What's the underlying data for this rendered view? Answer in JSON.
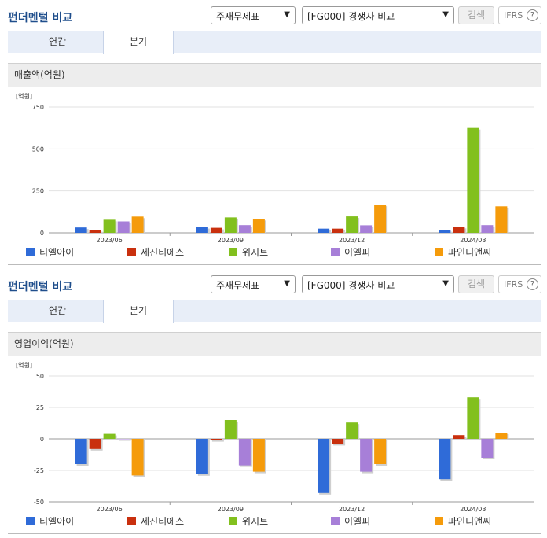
{
  "colors": {
    "s0": "#2f6bd8",
    "s1": "#c9300e",
    "s2": "#82c01e",
    "s3": "#a77fd8",
    "s4": "#f59b0b"
  },
  "panels": [
    {
      "header": {
        "title": "펀더멘털 비교",
        "item_select": "주재무제표",
        "compare_select": "[FG000] 경쟁사 비교",
        "search_label": "검색",
        "ifrs_label": "IFRS",
        "help": "?"
      },
      "tabs": [
        {
          "label": "연간"
        },
        {
          "label": "분기"
        }
      ],
      "section_title": "매출액(억원)",
      "unit": "[억원]",
      "chart_data": {
        "type": "bar",
        "categories": [
          "2023/06",
          "2023/09",
          "2023/12",
          "2024/03"
        ],
        "series": [
          {
            "name": "티엘아이",
            "values": [
              32,
              35,
              25,
              16
            ]
          },
          {
            "name": "세진티에스",
            "values": [
              16,
              30,
              25,
              36
            ]
          },
          {
            "name": "위지트",
            "values": [
              78,
              92,
              98,
              625
            ]
          },
          {
            "name": "이엘피",
            "values": [
              68,
              46,
              45,
              46
            ]
          },
          {
            "name": "파인디앤씨",
            "values": [
              97,
              83,
              168,
              158
            ]
          }
        ],
        "ylim": [
          0,
          750
        ],
        "yticks": [
          0,
          250,
          500,
          750
        ],
        "ytick_labels": [
          "0",
          "250",
          "500",
          "750"
        ],
        "grid": true,
        "legend": "bottom"
      }
    },
    {
      "header": {
        "title": "펀더멘털 비교",
        "item_select": "주재무제표",
        "compare_select": "[FG000] 경쟁사 비교",
        "search_label": "검색",
        "ifrs_label": "IFRS",
        "help": "?"
      },
      "tabs": [
        {
          "label": "연간"
        },
        {
          "label": "분기"
        }
      ],
      "section_title": "영업이익(억원)",
      "unit": "[억원]",
      "chart_data": {
        "type": "bar",
        "categories": [
          "2023/06",
          "2023/09",
          "2023/12",
          "2024/03"
        ],
        "series": [
          {
            "name": "티엘아이",
            "values": [
              -20,
              -28,
              -43,
              -32
            ]
          },
          {
            "name": "세진티에스",
            "values": [
              -8,
              -1,
              -4,
              3
            ]
          },
          {
            "name": "위지트",
            "values": [
              4,
              15,
              13,
              33
            ]
          },
          {
            "name": "이엘피",
            "values": [
              0,
              -21,
              -26,
              -15
            ]
          },
          {
            "name": "파인디앤씨",
            "values": [
              -29,
              -26,
              -20,
              5
            ]
          }
        ],
        "ylim": [
          -50,
          50
        ],
        "yticks": [
          -50,
          -25,
          0,
          25,
          50
        ],
        "ytick_labels": [
          "-50",
          "-25",
          "0",
          "25",
          "50"
        ],
        "grid": true,
        "legend": "bottom"
      }
    }
  ]
}
